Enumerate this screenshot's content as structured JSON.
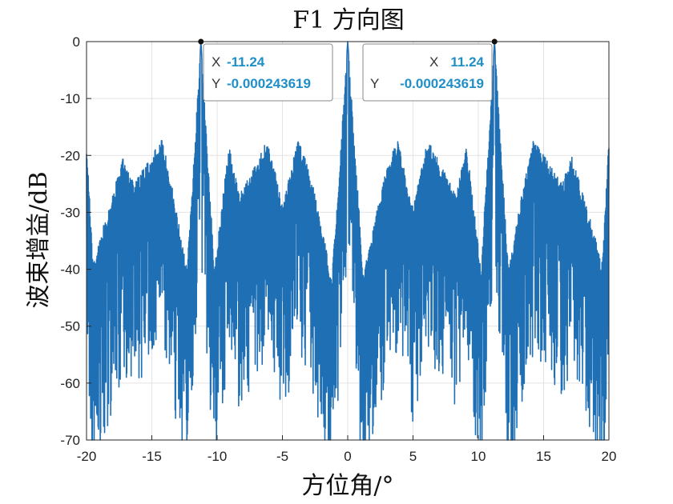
{
  "chart_data": {
    "type": "line",
    "title": "F1  方向图",
    "xlabel": "方位角/°",
    "ylabel": "波束增益/dB",
    "xlim": [
      -20,
      20
    ],
    "ylim": [
      -70,
      0
    ],
    "xticks": [
      "-20",
      "-15",
      "-10",
      "-5",
      "0",
      "5",
      "10",
      "15",
      "20"
    ],
    "yticks": [
      "0",
      "-10",
      "-20",
      "-30",
      "-40",
      "-50",
      "-60",
      "-70"
    ],
    "grid": true,
    "line_color": "#1f6fb5",
    "series": [
      {
        "x": [
          -20,
          -19.5,
          -18.3,
          -17.15,
          -16.4,
          -14.2,
          -13.4,
          -12.3,
          -11.24,
          -10.2,
          -9.1,
          -8.3,
          -6.1,
          -5.0,
          -3.8,
          -3.1,
          -2.3,
          -1.2,
          0,
          1.2,
          2.3,
          3.1,
          3.8,
          5.0,
          6.1,
          8.3,
          9.1,
          10.2,
          11.24,
          12.3,
          13.4,
          14.2,
          16.4,
          17.15,
          18.3,
          19.5,
          20
        ],
        "y": [
          -17,
          -39,
          -29,
          -20,
          -25,
          -17,
          -26,
          -40,
          0,
          -40,
          -18,
          -27,
          -17,
          -29,
          -17,
          -21,
          -29,
          -41,
          0,
          -41,
          -29,
          -21,
          -17,
          -29,
          -17,
          -27,
          -18,
          -40,
          0,
          -40,
          -26,
          -17,
          -25,
          -20,
          -29,
          -39,
          -17
        ]
      }
    ]
  },
  "datatips": [
    {
      "x_key": "X",
      "x_value": "-11.24",
      "y_key": "Y",
      "y_value": "-0.000243619"
    },
    {
      "x_key": "X",
      "x_value": "11.24",
      "y_key": "Y",
      "y_value": "-0.000243619"
    }
  ]
}
